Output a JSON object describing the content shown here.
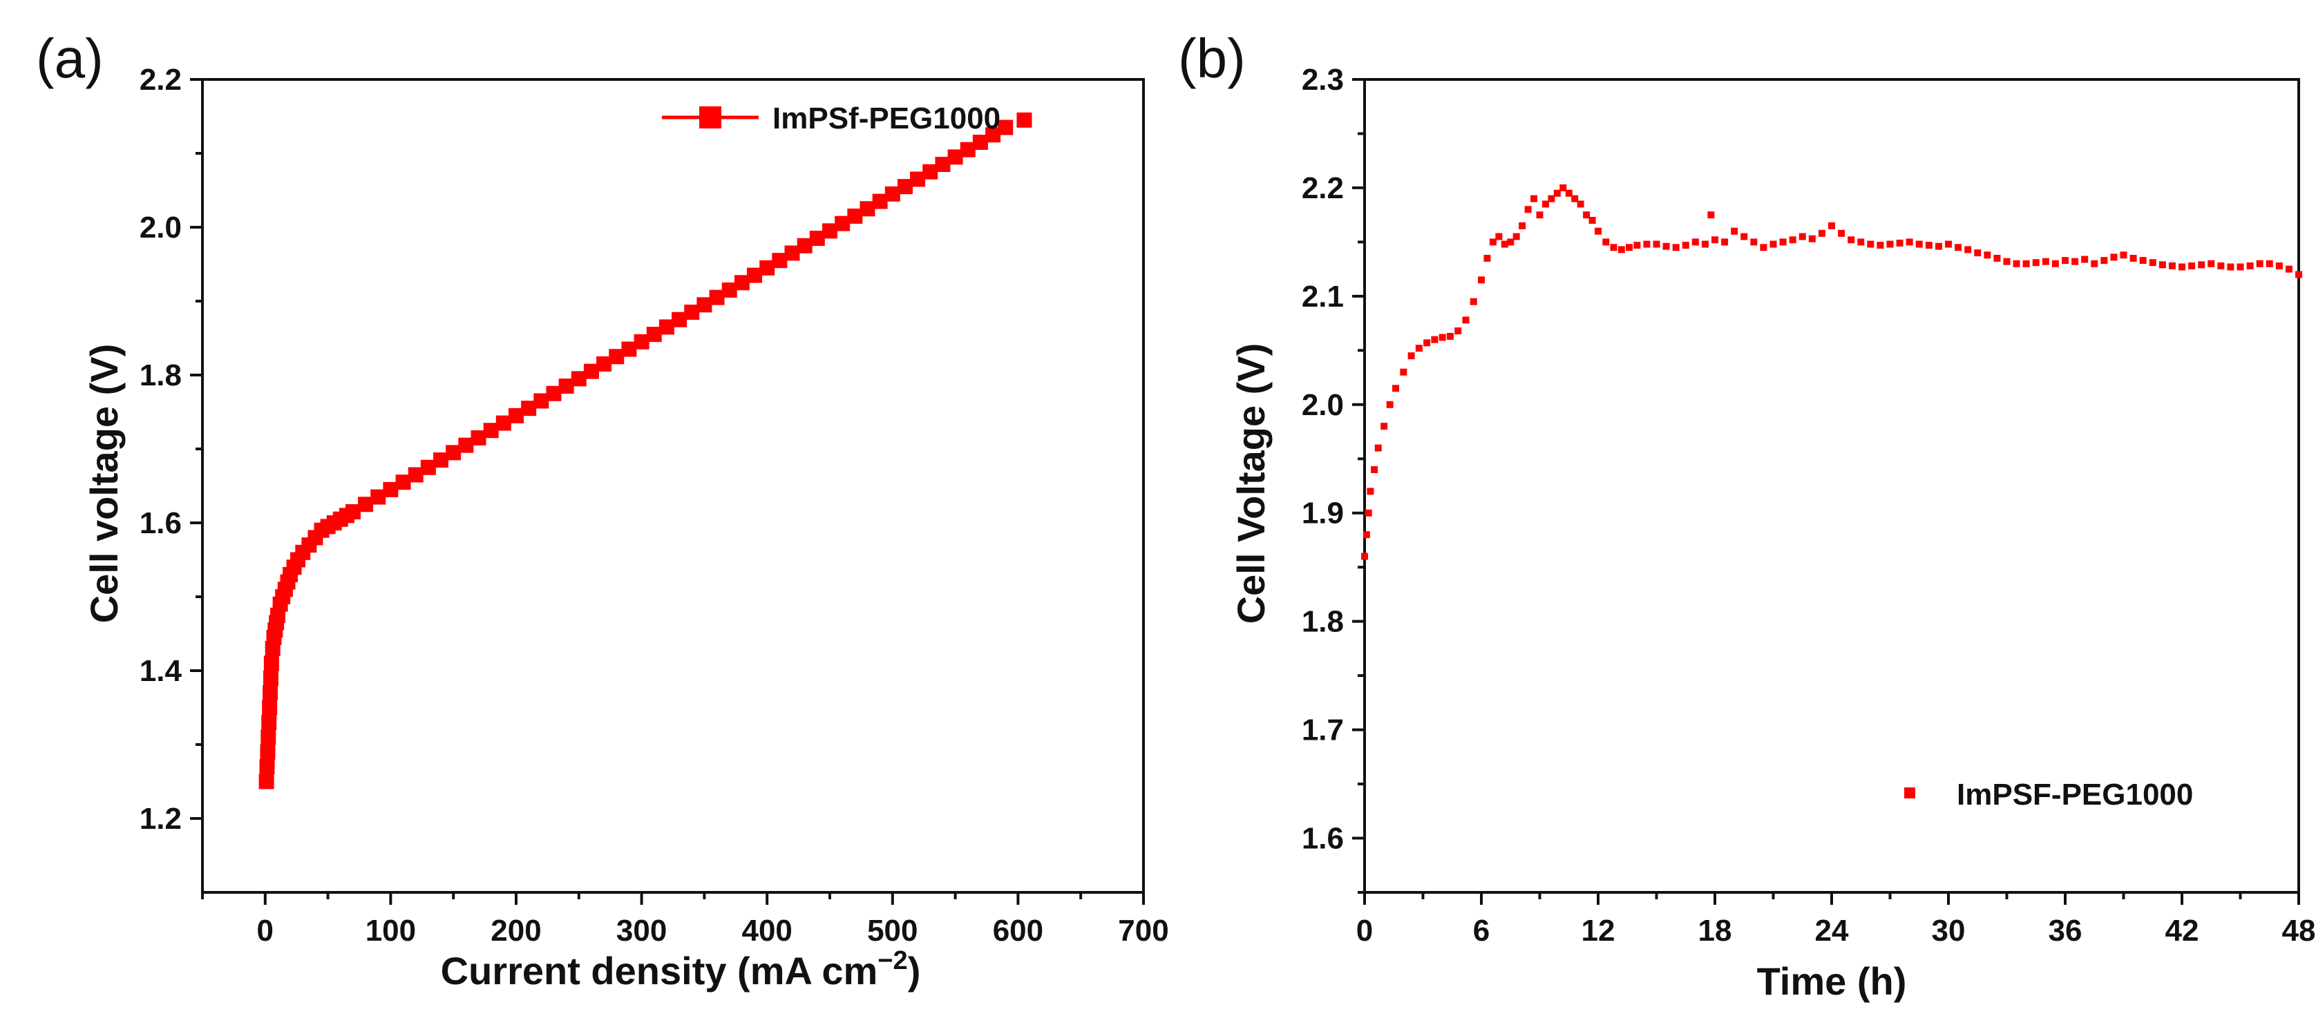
{
  "colors": {
    "series": "#ff0000",
    "axis": "#111111",
    "background": "#ffffff"
  },
  "chart_data": [
    {
      "panel_label": "(a)",
      "type": "scatter",
      "marker": "square",
      "connected_legend_line": true,
      "title": "",
      "xlabel": "Current density (mA cm",
      "xlabel_superscript": "−2",
      "xlabel_close": ")",
      "ylabel": "Cell voltage (V)",
      "xlim": [
        -50,
        700
      ],
      "ylim": [
        1.1,
        2.2
      ],
      "xticks": [
        0,
        100,
        200,
        300,
        400,
        500,
        600,
        700
      ],
      "xtick_labels": [
        "0",
        "100",
        "200",
        "300",
        "400",
        "500",
        "600",
        "700"
      ],
      "yticks": [
        1.2,
        1.4,
        1.6,
        1.8,
        2.0,
        2.2
      ],
      "ytick_labels": [
        "1.2",
        "1.4",
        "1.6",
        "1.8",
        "2.0",
        "2.2"
      ],
      "legend": {
        "position": "top-right",
        "entries": [
          "ImPSf-PEG1000"
        ]
      },
      "series": [
        {
          "name": "ImPSf-PEG1000",
          "x": [
            1,
            1.5,
            2,
            2.5,
            3,
            3.5,
            4,
            4.5,
            5,
            6,
            7,
            8,
            9,
            10,
            12,
            14,
            16,
            18,
            20,
            23,
            26,
            30,
            35,
            40,
            45,
            50,
            55,
            60,
            65,
            70,
            80,
            90,
            100,
            110,
            120,
            130,
            140,
            150,
            160,
            170,
            180,
            190,
            200,
            210,
            220,
            230,
            240,
            250,
            260,
            270,
            280,
            290,
            300,
            310,
            320,
            330,
            340,
            350,
            360,
            370,
            380,
            390,
            400,
            410,
            420,
            430,
            440,
            450,
            460,
            470,
            480,
            490,
            500,
            510,
            520,
            530,
            540,
            550,
            560,
            570,
            580,
            590,
            605
          ],
          "y": [
            1.25,
            1.27,
            1.29,
            1.31,
            1.33,
            1.35,
            1.37,
            1.39,
            1.41,
            1.43,
            1.445,
            1.455,
            1.465,
            1.475,
            1.49,
            1.5,
            1.51,
            1.52,
            1.53,
            1.54,
            1.55,
            1.56,
            1.57,
            1.58,
            1.59,
            1.595,
            1.6,
            1.605,
            1.61,
            1.615,
            1.625,
            1.635,
            1.645,
            1.655,
            1.665,
            1.675,
            1.685,
            1.695,
            1.705,
            1.715,
            1.725,
            1.735,
            1.745,
            1.755,
            1.765,
            1.775,
            1.785,
            1.795,
            1.805,
            1.815,
            1.825,
            1.835,
            1.845,
            1.855,
            1.865,
            1.875,
            1.885,
            1.895,
            1.905,
            1.915,
            1.925,
            1.935,
            1.945,
            1.955,
            1.965,
            1.975,
            1.985,
            1.995,
            2.005,
            2.015,
            2.025,
            2.035,
            2.045,
            2.055,
            2.065,
            2.075,
            2.085,
            2.095,
            2.105,
            2.115,
            2.125,
            2.135,
            2.145
          ]
        }
      ]
    },
    {
      "panel_label": "(b)",
      "type": "scatter",
      "marker": "square-small",
      "title": "",
      "xlabel": "Time (h)",
      "ylabel": "Cell Voltage (V)",
      "xlim": [
        0,
        48
      ],
      "ylim": [
        1.55,
        2.3
      ],
      "xticks": [
        0,
        6,
        12,
        18,
        24,
        30,
        36,
        42,
        48
      ],
      "xtick_labels": [
        "0",
        "6",
        "12",
        "18",
        "24",
        "30",
        "36",
        "42",
        "48"
      ],
      "yticks": [
        1.6,
        1.7,
        1.8,
        1.9,
        2.0,
        2.1,
        2.2,
        2.3
      ],
      "ytick_labels": [
        "1.6",
        "1.7",
        "1.8",
        "1.9",
        "2.0",
        "2.1",
        "2.2",
        "2.3"
      ],
      "legend": {
        "position": "bottom-right",
        "entries": [
          "ImPSF-PEG1000"
        ]
      },
      "series": [
        {
          "name": "ImPSF-PEG1000",
          "x": [
            0,
            0.1,
            0.2,
            0.3,
            0.5,
            0.7,
            1.0,
            1.3,
            1.6,
            2.0,
            2.4,
            2.8,
            3.2,
            3.6,
            4.0,
            4.4,
            4.8,
            5.2,
            5.6,
            6.0,
            6.3,
            6.6,
            6.9,
            7.2,
            7.5,
            7.8,
            8.1,
            8.4,
            8.7,
            9.0,
            9.3,
            9.6,
            9.9,
            10.2,
            10.5,
            10.8,
            11.1,
            11.4,
            11.7,
            12.0,
            12.4,
            12.8,
            13.2,
            13.6,
            14.0,
            14.5,
            15.0,
            15.5,
            16.0,
            16.5,
            17.0,
            17.5,
            17.8,
            18.0,
            18.5,
            19.0,
            19.5,
            20.0,
            20.5,
            21.0,
            21.5,
            22.0,
            22.5,
            23.0,
            23.5,
            24.0,
            24.5,
            25.0,
            25.5,
            26.0,
            26.5,
            27.0,
            27.5,
            28.0,
            28.5,
            29.0,
            29.5,
            30.0,
            30.5,
            31.0,
            31.5,
            32.0,
            32.5,
            33.0,
            33.5,
            34.0,
            34.5,
            35.0,
            35.5,
            36.0,
            36.5,
            37.0,
            37.5,
            38.0,
            38.5,
            39.0,
            39.5,
            40.0,
            40.5,
            41.0,
            41.5,
            42.0,
            42.5,
            43.0,
            43.5,
            44.0,
            44.5,
            45.0,
            45.5,
            46.0,
            46.5,
            47.0,
            47.5,
            48.0
          ],
          "y": [
            1.86,
            1.88,
            1.9,
            1.92,
            1.94,
            1.96,
            1.98,
            2.0,
            2.015,
            2.03,
            2.045,
            2.052,
            2.057,
            2.06,
            2.062,
            2.063,
            2.068,
            2.078,
            2.095,
            2.115,
            2.135,
            2.15,
            2.155,
            2.148,
            2.15,
            2.155,
            2.165,
            2.18,
            2.19,
            2.175,
            2.185,
            2.19,
            2.195,
            2.2,
            2.195,
            2.19,
            2.185,
            2.175,
            2.17,
            2.16,
            2.15,
            2.145,
            2.143,
            2.145,
            2.147,
            2.148,
            2.148,
            2.146,
            2.145,
            2.147,
            2.15,
            2.148,
            2.175,
            2.152,
            2.15,
            2.16,
            2.155,
            2.15,
            2.145,
            2.148,
            2.15,
            2.152,
            2.155,
            2.153,
            2.158,
            2.165,
            2.158,
            2.152,
            2.15,
            2.148,
            2.147,
            2.148,
            2.149,
            2.15,
            2.148,
            2.147,
            2.146,
            2.148,
            2.145,
            2.143,
            2.14,
            2.138,
            2.135,
            2.132,
            2.13,
            2.13,
            2.131,
            2.132,
            2.13,
            2.133,
            2.132,
            2.134,
            2.13,
            2.133,
            2.136,
            2.138,
            2.135,
            2.133,
            2.131,
            2.129,
            2.128,
            2.127,
            2.128,
            2.129,
            2.13,
            2.128,
            2.127,
            2.127,
            2.128,
            2.13,
            2.13,
            2.128,
            2.125,
            2.12
          ]
        }
      ]
    }
  ]
}
